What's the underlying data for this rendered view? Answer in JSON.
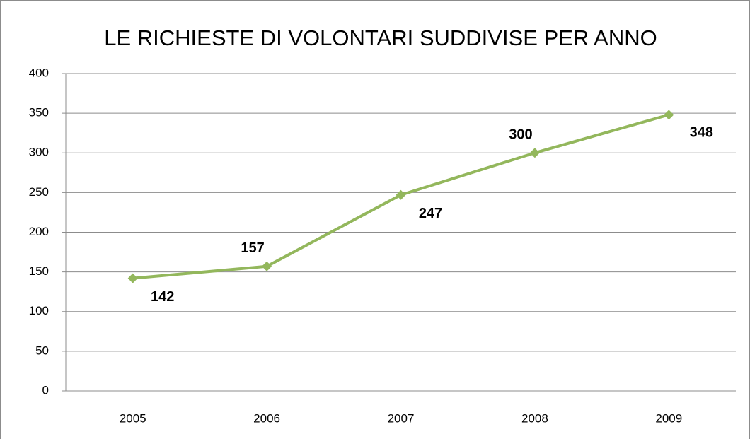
{
  "chart_data": {
    "type": "line",
    "title": "LE RICHIESTE DI VOLONTARI SUDDIVISE PER ANNO",
    "categories": [
      "2005",
      "2006",
      "2007",
      "2008",
      "2009"
    ],
    "values": [
      142,
      157,
      247,
      300,
      348
    ],
    "color": "#93b75c",
    "ylim": [
      0,
      400
    ],
    "yticks": [
      0,
      50,
      100,
      150,
      200,
      250,
      300,
      350,
      400
    ],
    "grid": true
  }
}
